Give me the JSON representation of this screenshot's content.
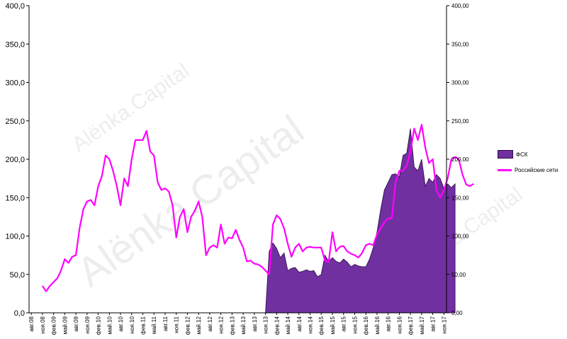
{
  "watermark": "Alёnka.Capital",
  "colors": {
    "area_fill": "#7030a0",
    "area_stroke": "#2a0a40",
    "line": "#ff00ff",
    "axis": "#000000",
    "watermark": "#000000"
  },
  "legend": {
    "position": "right",
    "items": [
      {
        "key": "fsk",
        "label": "ФСК",
        "kind": "area"
      },
      {
        "key": "rosseti",
        "label": "Российские сети",
        "kind": "line"
      }
    ]
  },
  "chart_data": {
    "type": "area",
    "grid": false,
    "ylim": [
      0,
      400
    ],
    "ylim_right": [
      0,
      400
    ],
    "y_ticks_left": [
      "0,0",
      "50,0",
      "100,0",
      "150,0",
      "200,0",
      "250,0",
      "300,0",
      "350,0",
      "400,0"
    ],
    "y_ticks_right": [
      "0,00",
      "50,00",
      "100,00",
      "150,00",
      "200,00",
      "250,00",
      "300,00",
      "350,00",
      "400,00"
    ],
    "x_ticks": [
      "авг.08",
      "ноя.08",
      "фев.09",
      "май.09",
      "авг.09",
      "ноя.09",
      "фев.10",
      "май.10",
      "авг.10",
      "ноя.10",
      "фев.11",
      "май.11",
      "авг.11",
      "ноя.11",
      "фев.12",
      "май.12",
      "авг.12",
      "ноя.12",
      "фев.13",
      "май.13",
      "авг.13",
      "ноя.13",
      "фев.14",
      "май.14",
      "авг.14",
      "ноя.14",
      "фев.15",
      "май.15",
      "авг.15",
      "ноя.15",
      "фев.16",
      "май.16",
      "авг.16",
      "ноя.16",
      "фев.17",
      "май.17",
      "авг.17",
      "ноя.17"
    ],
    "series": [
      {
        "name": "ФСК",
        "type": "area",
        "start_month_index": 63,
        "values": [
          0,
          80,
          91,
          84,
          72,
          78,
          55,
          58,
          59,
          53,
          54,
          56,
          54,
          55,
          47,
          50,
          75,
          67,
          72,
          67,
          65,
          70,
          66,
          60,
          63,
          61,
          60,
          60,
          70,
          85,
          105,
          135,
          160,
          170,
          180,
          181,
          177,
          205,
          208,
          240,
          190,
          185,
          200,
          165,
          175,
          170,
          180,
          175,
          162,
          168,
          163,
          168
        ]
      },
      {
        "name": "Российские сети",
        "type": "line",
        "start_month_index": 3,
        "values": [
          35,
          28,
          35,
          40,
          45,
          55,
          70,
          65,
          73,
          75,
          110,
          135,
          145,
          147,
          140,
          165,
          178,
          205,
          200,
          185,
          165,
          140,
          175,
          165,
          200,
          225,
          225,
          225,
          237,
          210,
          205,
          170,
          160,
          162,
          158,
          140,
          98,
          125,
          135,
          105,
          125,
          133,
          145,
          125,
          75,
          85,
          88,
          85,
          115,
          90,
          98,
          97,
          108,
          95,
          85,
          67,
          68,
          64,
          63,
          60,
          55,
          50,
          115,
          127,
          122,
          110,
          90,
          73,
          85,
          90,
          80,
          85,
          86,
          85,
          85,
          85,
          68,
          66,
          105,
          80,
          86,
          87,
          80,
          77,
          75,
          72,
          78,
          88,
          90,
          88,
          102,
          110,
          118,
          123,
          123,
          170,
          185,
          185,
          192,
          210,
          240,
          225,
          245,
          215,
          195,
          200,
          160,
          150,
          160,
          175,
          200,
          203,
          200,
          180,
          167,
          165,
          168
        ]
      }
    ]
  }
}
